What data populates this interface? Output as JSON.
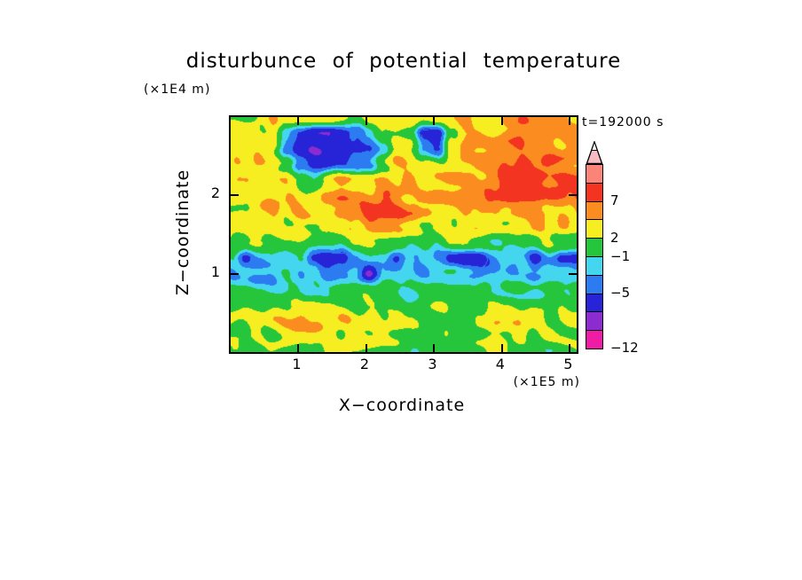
{
  "chart_data": {
    "type": "heatmap",
    "title": "disturbunce of potential temperature",
    "xlabel": "X−coordinate",
    "ylabel": "Z−coordinate",
    "x_unit": "(×1E5 m)",
    "y_unit": "(×1E4 m)",
    "time_label": "t=192000 s",
    "xlim": [
      0,
      5.1
    ],
    "ylim": [
      0,
      3
    ],
    "x_ticks": [
      1,
      2,
      3,
      4,
      5
    ],
    "x_tick_labels": [
      "1",
      "2",
      "3",
      "4",
      "5"
    ],
    "y_ticks": [
      1,
      2
    ],
    "y_tick_labels": [
      "1",
      "2"
    ],
    "grid_on": false,
    "legend_position": "right-colorbar",
    "levels": [
      -12,
      -5,
      -1,
      2,
      7
    ],
    "thresholds": [
      -9.67,
      -7.33,
      -5,
      -3,
      -1,
      2,
      4.5,
      7,
      10,
      13
    ],
    "colors": [
      "#ef1da5",
      "#8b2bd0",
      "#2723d6",
      "#2d7bf0",
      "#45d6ef",
      "#25c63c",
      "#f6ee20",
      "#fb8d20",
      "#f23420",
      "#fa8478",
      "#f7bcc3"
    ],
    "colorbar": {
      "tip_color": "#f7bcc3",
      "segments": [
        {
          "color": "#fa8478",
          "label": null
        },
        {
          "color": "#f23420",
          "label": "7"
        },
        {
          "color": "#fb8d20",
          "label": null
        },
        {
          "color": "#f6ee20",
          "label": "2"
        },
        {
          "color": "#25c63c",
          "label": "−1"
        },
        {
          "color": "#45d6ef",
          "label": null
        },
        {
          "color": "#2d7bf0",
          "label": "−5"
        },
        {
          "color": "#2723d6",
          "label": null
        },
        {
          "color": "#8b2bd0",
          "label": null
        },
        {
          "color": "#ef1da5",
          "label": "−12"
        }
      ]
    },
    "grid": [
      [
        2,
        1,
        3,
        4,
        3,
        2,
        3,
        4,
        3,
        2,
        3,
        4,
        3,
        3,
        2,
        3,
        4,
        5,
        4,
        3,
        5,
        6,
        5,
        6,
        5,
        4
      ],
      [
        3,
        3,
        2,
        3,
        -2,
        -5,
        -7,
        -7,
        -6,
        -5,
        -3,
        2,
        3,
        2,
        -5,
        -6,
        2,
        4,
        5,
        4,
        6,
        7,
        6,
        7,
        6,
        5
      ],
      [
        2,
        3,
        4,
        3,
        -4,
        -6,
        -7,
        -7,
        -7,
        -6,
        -5,
        -2,
        3,
        2,
        -4,
        -5,
        3,
        5,
        4,
        5,
        6,
        7,
        7,
        6,
        5,
        6
      ],
      [
        3,
        4,
        5,
        4,
        2,
        -4,
        -6,
        -6,
        -5,
        -4,
        -3,
        2,
        4,
        3,
        2,
        3,
        4,
        5,
        6,
        5,
        7,
        8,
        7,
        8,
        7,
        6
      ],
      [
        4,
        3,
        2,
        3,
        4,
        2,
        -2,
        3,
        4,
        3,
        4,
        5,
        4,
        5,
        4,
        5,
        6,
        5,
        4,
        6,
        8,
        9,
        8,
        7,
        8,
        7
      ],
      [
        3,
        2,
        3,
        4,
        5,
        4,
        3,
        5,
        6,
        5,
        4,
        6,
        5,
        4,
        5,
        6,
        5,
        6,
        5,
        7,
        8,
        8,
        9,
        8,
        7,
        6
      ],
      [
        2,
        3,
        6,
        5,
        3,
        4,
        3,
        4,
        5,
        6,
        8,
        9,
        8,
        6,
        4,
        3,
        4,
        5,
        6,
        5,
        4,
        5,
        6,
        5,
        4,
        5
      ],
      [
        2,
        3,
        4,
        3,
        2,
        3,
        2,
        3,
        4,
        5,
        6,
        5,
        4,
        3,
        2,
        3,
        2,
        3,
        4,
        3,
        2,
        3,
        4,
        3,
        4,
        3
      ],
      [
        1,
        2,
        1,
        0,
        1,
        2,
        1,
        0,
        1,
        2,
        3,
        2,
        1,
        0,
        1,
        0,
        1,
        2,
        1,
        0,
        1,
        0,
        1,
        2,
        1,
        0
      ],
      [
        -2,
        -6,
        -3,
        -2,
        -3,
        -2,
        -6,
        -7,
        -6,
        -3,
        -2,
        -3,
        -6,
        -3,
        -2,
        -3,
        -6,
        -7,
        -6,
        -3,
        -2,
        -3,
        -6,
        -3,
        -6,
        -6
      ],
      [
        -3,
        -2,
        -3,
        -4,
        -2,
        -3,
        -2,
        -4,
        -3,
        -2,
        -8,
        -3,
        -2,
        -3,
        -4,
        -3,
        -2,
        -3,
        -4,
        -2,
        -3,
        -2,
        -4,
        -3,
        -2,
        -3
      ],
      [
        -1,
        0,
        -1,
        -2,
        -1,
        0,
        -1,
        -2,
        -1,
        0,
        1,
        0,
        -1,
        -2,
        -1,
        0,
        -1,
        0,
        -1,
        -2,
        -1,
        0,
        -1,
        0,
        -1,
        0
      ],
      [
        1,
        2,
        1,
        0,
        1,
        2,
        3,
        2,
        1,
        0,
        1,
        2,
        1,
        0,
        1,
        2,
        1,
        0,
        1,
        2,
        1,
        0,
        1,
        2,
        1,
        0
      ],
      [
        3,
        2,
        3,
        4,
        5,
        6,
        4,
        3,
        4,
        3,
        4,
        3,
        4,
        3,
        1,
        0,
        1,
        0,
        3,
        4,
        3,
        4,
        3,
        2,
        3,
        4
      ],
      [
        2,
        3,
        2,
        1,
        2,
        3,
        4,
        3,
        2,
        3,
        2,
        3,
        2,
        1,
        0,
        1,
        0,
        1,
        2,
        3,
        2,
        3,
        2,
        3,
        2,
        1
      ],
      [
        1,
        0,
        1,
        2,
        1,
        0,
        1,
        2,
        3,
        2,
        1,
        0,
        1,
        0,
        1,
        2,
        1,
        0,
        1,
        2,
        1,
        0,
        1,
        0,
        1,
        2
      ]
    ]
  }
}
